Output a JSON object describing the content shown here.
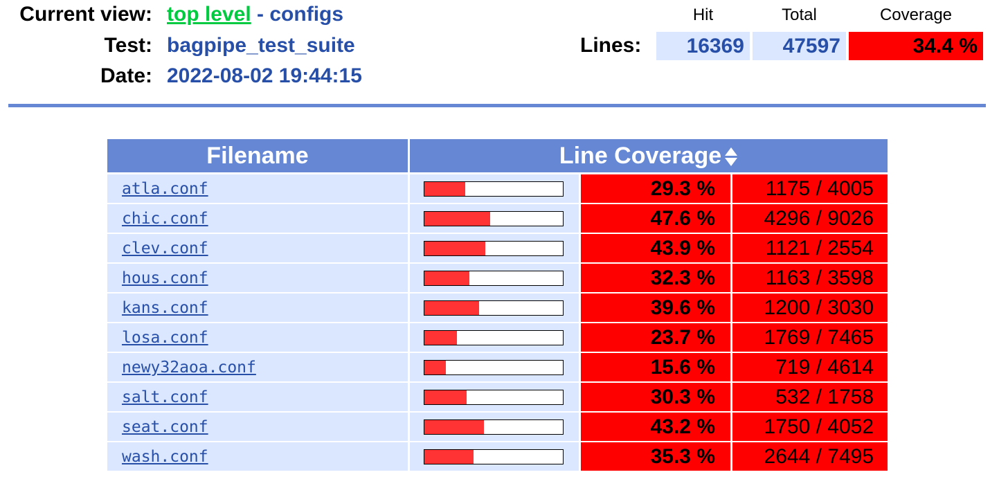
{
  "header": {
    "current_view_label": "Current view:",
    "top_level_link": "top level",
    "separator_configs": "- configs",
    "test_label": "Test:",
    "test_value": "bagpipe_test_suite",
    "date_label": "Date:",
    "date_value": "2022-08-02 19:44:15"
  },
  "summary": {
    "hit_header": "Hit",
    "total_header": "Total",
    "coverage_header": "Coverage",
    "lines_label": "Lines:",
    "hit": "16369",
    "total": "47597",
    "coverage": "34.4 %"
  },
  "table": {
    "filename_header": "Filename",
    "coverage_header": "Line Coverage",
    "rows": [
      {
        "file": "atla.conf",
        "pct": "29.3 %",
        "counts": "1175 / 4005",
        "fill": 0.293
      },
      {
        "file": "chic.conf",
        "pct": "47.6 %",
        "counts": "4296 / 9026",
        "fill": 0.476
      },
      {
        "file": "clev.conf",
        "pct": "43.9 %",
        "counts": "1121 / 2554",
        "fill": 0.439
      },
      {
        "file": "hous.conf",
        "pct": "32.3 %",
        "counts": "1163 / 3598",
        "fill": 0.323
      },
      {
        "file": "kans.conf",
        "pct": "39.6 %",
        "counts": "1200 / 3030",
        "fill": 0.396
      },
      {
        "file": "losa.conf",
        "pct": "23.7 %",
        "counts": "1769 / 7465",
        "fill": 0.237
      },
      {
        "file": "newy32aoa.conf",
        "pct": "15.6 %",
        "counts": "719 / 4614",
        "fill": 0.156
      },
      {
        "file": "salt.conf",
        "pct": "30.3 %",
        "counts": "532 / 1758",
        "fill": 0.303
      },
      {
        "file": "seat.conf",
        "pct": "43.2 %",
        "counts": "1750 / 4052",
        "fill": 0.432
      },
      {
        "file": "wash.conf",
        "pct": "35.3 %",
        "counts": "2644 / 7495",
        "fill": 0.353
      }
    ]
  },
  "colors": {
    "accent": "#6688d4",
    "link": "#284fa8",
    "top_level_link": "#00cb40",
    "cell_bg": "#dae7fe",
    "low_coverage": "#ff0000",
    "bar_fill": "#ff3333"
  },
  "icons": {
    "sort": "sort-updown-icon"
  }
}
